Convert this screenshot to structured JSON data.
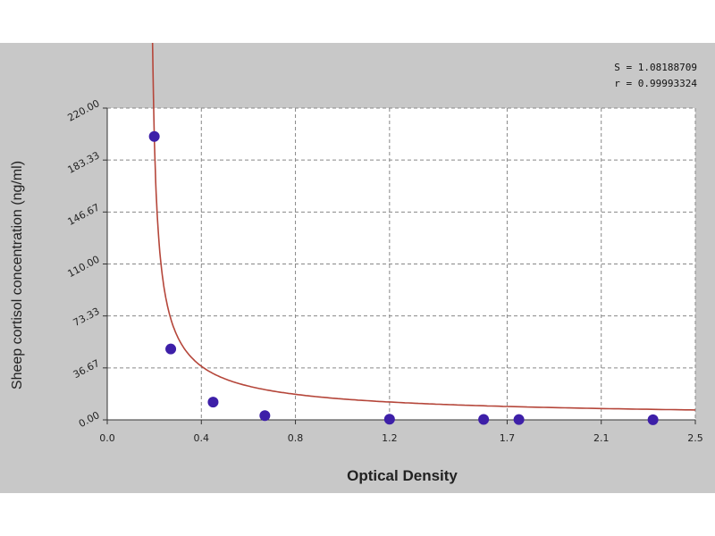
{
  "chart_data": {
    "type": "scatter",
    "xlabel": "Optical Density",
    "ylabel": "Sheep cortisol concentration (ng/ml)",
    "xlim": [
      0.0,
      2.5
    ],
    "ylim": [
      0.0,
      220.0
    ],
    "x_ticks": [
      {
        "value": 0.0,
        "label": "0.0"
      },
      {
        "value": 0.4,
        "label": "0.4"
      },
      {
        "value": 0.8,
        "label": "0.8"
      },
      {
        "value": 1.2,
        "label": "1.2"
      },
      {
        "value": 1.7,
        "label": "1.7"
      },
      {
        "value": 2.1,
        "label": "2.1"
      },
      {
        "value": 2.5,
        "label": "2.5"
      }
    ],
    "y_ticks": [
      {
        "value": 0.0,
        "label": "0.00"
      },
      {
        "value": 36.67,
        "label": "36.67"
      },
      {
        "value": 73.33,
        "label": "73.33"
      },
      {
        "value": 110.0,
        "label": "110.00"
      },
      {
        "value": 146.67,
        "label": "146.67"
      },
      {
        "value": 183.33,
        "label": "183.33"
      },
      {
        "value": 220.0,
        "label": "220.00"
      }
    ],
    "grid": true,
    "series": [
      {
        "values": [
          {
            "x": 0.2,
            "y": 200.0
          },
          {
            "x": 0.27,
            "y": 50.0
          },
          {
            "x": 0.45,
            "y": 12.5
          },
          {
            "x": 0.67,
            "y": 3.0
          },
          {
            "x": 1.2,
            "y": 0.5
          },
          {
            "x": 1.6,
            "y": 0.3
          },
          {
            "x": 1.75,
            "y": 0.2
          },
          {
            "x": 2.32,
            "y": 0.1
          }
        ]
      }
    ],
    "stats": {
      "s_text": "S = 1.08188709",
      "r_text": "r = 0.99993324"
    },
    "colors": {
      "point": "#3d1fa8",
      "curve": "#b5463a",
      "background": "#c8c8c8",
      "plot_area": "#ffffff"
    }
  }
}
